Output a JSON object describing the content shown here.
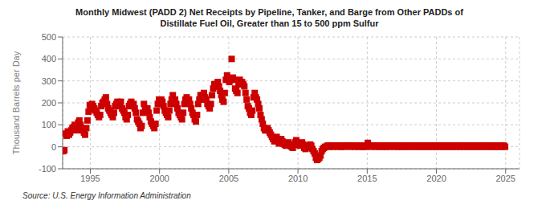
{
  "chart_data": {
    "type": "scatter",
    "title": "Monthly Midwest (PADD 2) Net Receipts by Pipeline, Tanker, and Barge from Other PADDs of",
    "subtitle": "Distillate Fuel Oil, Greater than 15 to 500 ppm Sulfur",
    "ylabel": "Thousand Barrels per Day",
    "annotations": [
      "Source: U.S. Energy Information Administration"
    ],
    "color": "#cc0000",
    "marker": "square",
    "grid": true,
    "xlim": [
      1993.0,
      2026.0
    ],
    "ylim": [
      -100,
      500
    ],
    "xticks": [
      1995,
      2000,
      2005,
      2010,
      2015,
      2020,
      2025
    ],
    "yticks": [
      -100,
      0,
      100,
      200,
      300,
      400,
      500
    ],
    "x": [
      1993.0416666666667,
      1993.125,
      1993.2083333333333,
      1993.2916666666667,
      1993.375,
      1993.4583333333333,
      1993.5416666666667,
      1993.625,
      1993.7083333333333,
      1993.7916666666667,
      1993.875,
      1993.9583333333333,
      1994.0416666666667,
      1994.125,
      1994.2083333333333,
      1994.2916666666667,
      1994.375,
      1994.4583333333333,
      1994.5416666666667,
      1994.625,
      1994.7083333333333,
      1994.7916666666667,
      1994.875,
      1994.9583333333333,
      1995.0416666666667,
      1995.125,
      1995.2083333333333,
      1995.2916666666667,
      1995.375,
      1995.4583333333333,
      1995.5416666666667,
      1995.625,
      1995.7083333333333,
      1995.7916666666667,
      1995.875,
      1995.9583333333333,
      1996.0416666666667,
      1996.125,
      1996.2083333333333,
      1996.2916666666667,
      1996.375,
      1996.4583333333333,
      1996.5416666666667,
      1996.625,
      1996.7083333333333,
      1996.7916666666667,
      1996.875,
      1996.9583333333333,
      1997.0416666666667,
      1997.125,
      1997.2083333333333,
      1997.2916666666667,
      1997.375,
      1997.4583333333333,
      1997.5416666666667,
      1997.625,
      1997.7083333333333,
      1997.7916666666667,
      1997.875,
      1997.9583333333333,
      1998.0416666666667,
      1998.125,
      1998.2083333333333,
      1998.2916666666667,
      1998.375,
      1998.4583333333333,
      1998.5416666666667,
      1998.625,
      1998.7083333333333,
      1998.7916666666667,
      1998.875,
      1998.9583333333333,
      1999.0416666666667,
      1999.125,
      1999.2083333333333,
      1999.2916666666667,
      1999.375,
      1999.4583333333333,
      1999.5416666666667,
      1999.625,
      1999.7083333333333,
      1999.7916666666667,
      1999.875,
      1999.9583333333333,
      2000.0416666666667,
      2000.125,
      2000.2083333333333,
      2000.2916666666667,
      2000.375,
      2000.4583333333333,
      2000.5416666666667,
      2000.625,
      2000.7083333333333,
      2000.7916666666667,
      2000.875,
      2000.9583333333333,
      2001.0416666666667,
      2001.125,
      2001.2083333333333,
      2001.2916666666667,
      2001.375,
      2001.4583333333333,
      2001.5416666666667,
      2001.625,
      2001.7083333333333,
      2001.7916666666667,
      2001.875,
      2001.9583333333333,
      2002.0416666666667,
      2002.125,
      2002.2083333333333,
      2002.2916666666667,
      2002.375,
      2002.4583333333333,
      2002.5416666666667,
      2002.625,
      2002.7083333333333,
      2002.7916666666667,
      2002.875,
      2002.9583333333333,
      2003.0416666666667,
      2003.125,
      2003.2083333333333,
      2003.2916666666667,
      2003.375,
      2003.4583333333333,
      2003.5416666666667,
      2003.625,
      2003.7083333333333,
      2003.7916666666667,
      2003.875,
      2003.9583333333333,
      2004.0416666666667,
      2004.125,
      2004.2083333333333,
      2004.2916666666667,
      2004.375,
      2004.4583333333333,
      2004.5416666666667,
      2004.625,
      2004.7083333333333,
      2004.7916666666667,
      2004.875,
      2004.9583333333333,
      2005.0416666666667,
      2005.125,
      2005.2083333333333,
      2005.2916666666667,
      2005.375,
      2005.4583333333333,
      2005.5416666666667,
      2005.625,
      2005.7083333333333,
      2005.7916666666667,
      2005.875,
      2005.9583333333333,
      2006.0416666666667,
      2006.125,
      2006.2083333333333,
      2006.2916666666667,
      2006.375,
      2006.4583333333333,
      2006.5416666666667,
      2006.625,
      2006.7083333333333,
      2006.7916666666667,
      2006.875,
      2006.9583333333333,
      2007.0416666666667,
      2007.125,
      2007.2083333333333,
      2007.2916666666667,
      2007.375,
      2007.4583333333333,
      2007.5416666666667,
      2007.625,
      2007.7083333333333,
      2007.7916666666667,
      2007.875,
      2007.9583333333333,
      2008.0416666666667,
      2008.125,
      2008.2083333333333,
      2008.2916666666667,
      2008.375,
      2008.4583333333333,
      2008.5416666666667,
      2008.625,
      2008.7083333333333,
      2008.7916666666667,
      2008.875,
      2008.9583333333333,
      2009.0416666666667,
      2009.125,
      2009.2083333333333,
      2009.2916666666667,
      2009.375,
      2009.4583333333333,
      2009.5416666666667,
      2009.625,
      2009.7083333333333,
      2009.7916666666667,
      2009.875,
      2009.9583333333333,
      2010.0416666666667,
      2010.125,
      2010.2083333333333,
      2010.2916666666667,
      2010.375,
      2010.4583333333333,
      2010.5416666666667,
      2010.625,
      2010.7083333333333,
      2010.7916666666667,
      2010.875,
      2010.9583333333333,
      2011.0416666666667,
      2011.125,
      2011.2083333333333,
      2011.2916666666667,
      2011.375,
      2011.4583333333333,
      2011.5416666666667,
      2011.625,
      2011.7083333333333,
      2011.7916666666667,
      2011.875,
      2011.9583333333333,
      2012.0416666666667,
      2012.125,
      2012.2083333333333,
      2012.2916666666667,
      2012.375,
      2012.4583333333333,
      2012.5416666666667,
      2012.625,
      2012.7083333333333,
      2012.7916666666667,
      2012.875,
      2012.9583333333333,
      2013.0416666666667,
      2013.125,
      2013.2083333333333,
      2013.2916666666667,
      2013.375,
      2013.4583333333333,
      2013.5416666666667,
      2013.625,
      2013.7083333333333,
      2013.7916666666667,
      2013.875,
      2013.9583333333333,
      2014.0416666666667,
      2014.125,
      2014.2083333333333,
      2014.2916666666667,
      2014.375,
      2014.4583333333333,
      2014.5416666666667,
      2014.625,
      2014.7083333333333,
      2014.7916666666667,
      2014.875,
      2014.9583333333333,
      2015.0416666666667,
      2015.125,
      2015.2083333333333,
      2015.2916666666667,
      2015.375,
      2015.4583333333333,
      2015.5416666666667,
      2015.625,
      2015.7083333333333,
      2015.7916666666667,
      2015.875,
      2015.9583333333333,
      2016.0416666666667,
      2016.125,
      2016.2083333333333,
      2016.2916666666667,
      2016.375,
      2016.4583333333333,
      2016.5416666666667,
      2016.625,
      2016.7083333333333,
      2016.7916666666667,
      2016.875,
      2016.9583333333333,
      2017.0416666666667,
      2017.125,
      2017.2083333333333,
      2017.2916666666667,
      2017.375,
      2017.4583333333333,
      2017.5416666666667,
      2017.625,
      2017.7083333333333,
      2017.7916666666667,
      2017.875,
      2017.9583333333333,
      2018.0416666666667,
      2018.125,
      2018.2083333333333,
      2018.2916666666667,
      2018.375,
      2018.4583333333333,
      2018.5416666666667,
      2018.625,
      2018.7083333333333,
      2018.7916666666667,
      2018.875,
      2018.9583333333333,
      2019.0416666666667,
      2019.125,
      2019.2083333333333,
      2019.2916666666667,
      2019.375,
      2019.4583333333333,
      2019.5416666666667,
      2019.625,
      2019.7083333333333,
      2019.7916666666667,
      2019.875,
      2019.9583333333333,
      2020.0416666666667,
      2020.125,
      2020.2083333333333,
      2020.2916666666667,
      2020.375,
      2020.4583333333333,
      2020.5416666666667,
      2020.625,
      2020.7083333333333,
      2020.7916666666667,
      2020.875,
      2020.9583333333333,
      2021.0416666666667,
      2021.125,
      2021.2083333333333,
      2021.2916666666667,
      2021.375,
      2021.4583333333333,
      2021.5416666666667,
      2021.625,
      2021.7083333333333,
      2021.7916666666667,
      2021.875,
      2021.9583333333333,
      2022.0416666666667,
      2022.125,
      2022.2083333333333,
      2022.2916666666667,
      2022.375,
      2022.4583333333333,
      2022.5416666666667,
      2022.625,
      2022.7083333333333,
      2022.7916666666667,
      2022.875,
      2022.9583333333333,
      2023.0416666666667,
      2023.125,
      2023.2083333333333,
      2023.2916666666667,
      2023.375,
      2023.4583333333333,
      2023.5416666666667,
      2023.625,
      2023.7083333333333,
      2023.7916666666667,
      2023.875,
      2023.9583333333333,
      2024.0416666666667,
      2024.125,
      2024.2083333333333,
      2024.2916666666667,
      2024.375,
      2024.4583333333333,
      2024.5416666666667,
      2024.625,
      2024.7083333333333,
      2024.7916666666667,
      2024.875,
      2024.9583333333333
    ],
    "values": [
      -20,
      -15,
      60,
      50,
      70,
      55,
      65,
      75,
      85,
      90,
      100,
      80,
      75,
      110,
      120,
      100,
      85,
      75,
      65,
      55,
      85,
      120,
      160,
      190,
      170,
      195,
      185,
      175,
      165,
      155,
      145,
      135,
      145,
      185,
      200,
      205,
      215,
      225,
      195,
      175,
      165,
      155,
      145,
      135,
      155,
      185,
      195,
      205,
      185,
      195,
      205,
      175,
      165,
      155,
      135,
      125,
      145,
      185,
      195,
      205,
      185,
      195,
      175,
      155,
      125,
      115,
      105,
      85,
      95,
      155,
      195,
      175,
      165,
      175,
      155,
      135,
      115,
      105,
      95,
      85,
      105,
      165,
      195,
      215,
      195,
      215,
      205,
      185,
      165,
      155,
      145,
      135,
      165,
      195,
      215,
      235,
      205,
      215,
      195,
      175,
      155,
      145,
      135,
      125,
      155,
      195,
      215,
      225,
      205,
      215,
      195,
      175,
      155,
      145,
      125,
      115,
      145,
      195,
      215,
      235,
      215,
      235,
      245,
      225,
      215,
      195,
      185,
      175,
      195,
      235,
      265,
      285,
      275,
      285,
      295,
      275,
      255,
      235,
      215,
      205,
      245,
      305,
      325,
      305,
      295,
      305,
      400,
      315,
      305,
      265,
      255,
      245,
      285,
      305,
      285,
      295,
      285,
      275,
      245,
      215,
      185,
      175,
      155,
      145,
      165,
      225,
      245,
      225,
      215,
      195,
      175,
      145,
      125,
      105,
      85,
      75,
      75,
      85,
      75,
      65,
      55,
      45,
      35,
      25,
      35,
      45,
      25,
      15,
      25,
      35,
      25,
      15,
      10,
      5,
      15,
      20,
      10,
      5,
      0,
      -5,
      10,
      20,
      30,
      15,
      10,
      5,
      15,
      20,
      10,
      -5,
      -10,
      -5,
      0,
      5,
      10,
      5,
      -10,
      -20,
      -30,
      -50,
      -60,
      -55,
      -50,
      -40,
      -20,
      -10,
      -5,
      0,
      0,
      5,
      5,
      0,
      5,
      5,
      0,
      5,
      5,
      5,
      0,
      5,
      5,
      0,
      5,
      5,
      0,
      5,
      5,
      5,
      5,
      0,
      5,
      5,
      5,
      0,
      5,
      5,
      0,
      5,
      5,
      0,
      0,
      5,
      0,
      5,
      18,
      5,
      5,
      0,
      5,
      5,
      5,
      0,
      5,
      5,
      0,
      5,
      5,
      0,
      5,
      5,
      0,
      5,
      5,
      0,
      5,
      5,
      5,
      0,
      5,
      5,
      0,
      5,
      5,
      0,
      5,
      5,
      0,
      5,
      5,
      0,
      5,
      5,
      0,
      5,
      5,
      0,
      5,
      5,
      0,
      5,
      5,
      0,
      5,
      5,
      0,
      5,
      5,
      0,
      5,
      5,
      0,
      5,
      5,
      0,
      5,
      5,
      0,
      5,
      5,
      0,
      5,
      5,
      0,
      5,
      5,
      0,
      5,
      5,
      0,
      5,
      5,
      0,
      5,
      5,
      0,
      5,
      5,
      0,
      5,
      5,
      0,
      5,
      5,
      0,
      5,
      5,
      0,
      5,
      5,
      0,
      5,
      5,
      0,
      5,
      5,
      0,
      5,
      5,
      0,
      5,
      5,
      0,
      5,
      5,
      0,
      5,
      5,
      0,
      5,
      5,
      0,
      5,
      5,
      0
    ]
  }
}
